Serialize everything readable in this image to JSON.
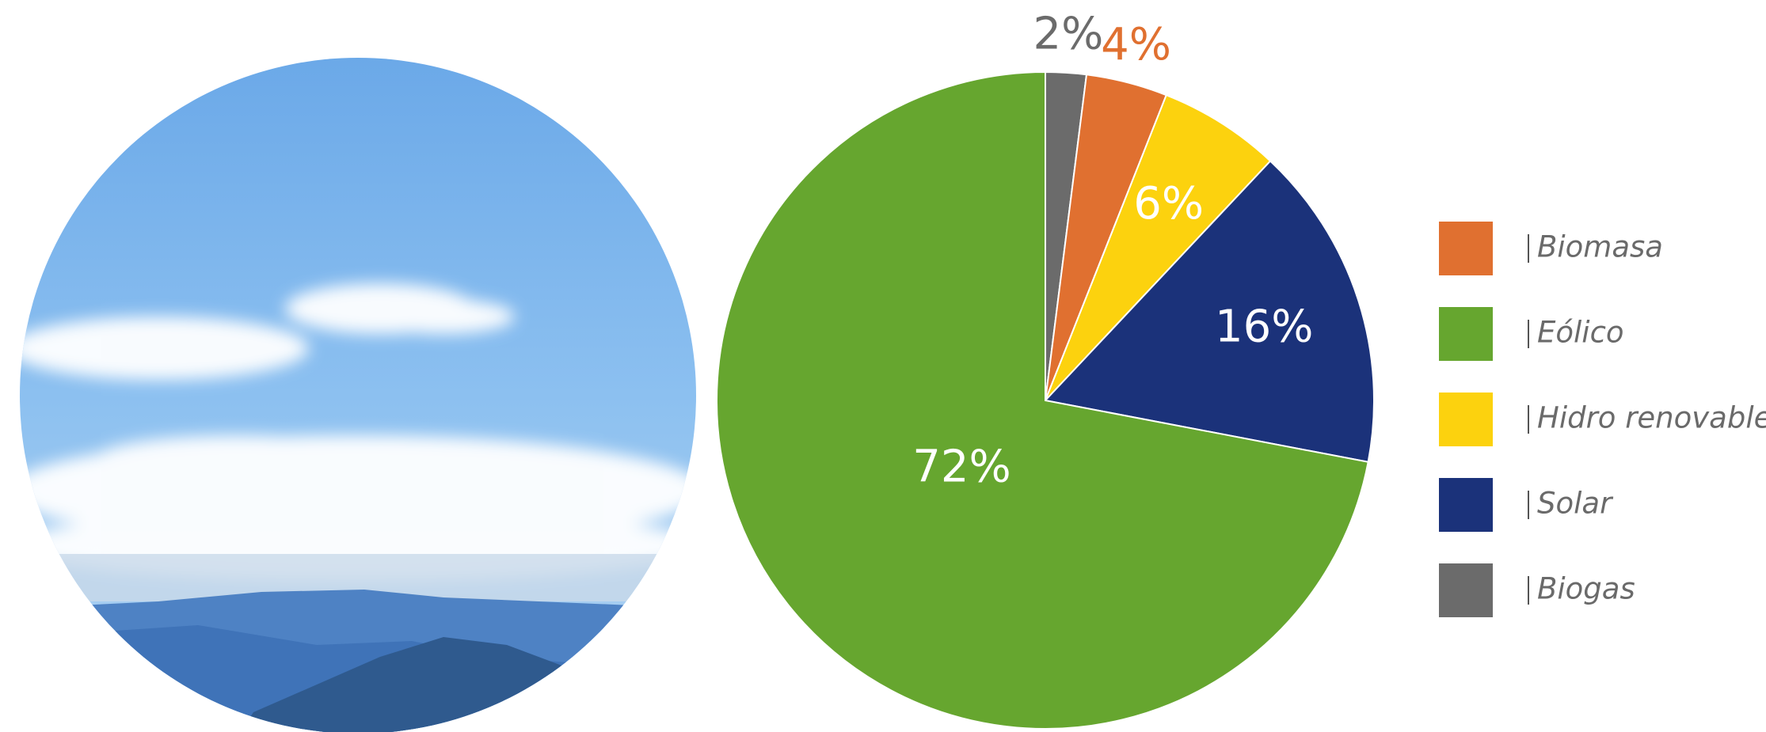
{
  "chart_data": {
    "type": "pie",
    "categories": [
      "Biogas",
      "Biomasa",
      "Hidro renovable",
      "Solar",
      "Eólico"
    ],
    "values": [
      2,
      4,
      6,
      16,
      72
    ],
    "value_labels": [
      "2%",
      "4%",
      "6%",
      "16%",
      "72%"
    ],
    "colors": [
      "#6b6b6b",
      "#e07030",
      "#fcd20e",
      "#1b327a",
      "#66a62f"
    ],
    "legend": [
      "Biomasa",
      "Eólico",
      "Hidro renovable",
      "Solar",
      "Biogas"
    ]
  }
}
